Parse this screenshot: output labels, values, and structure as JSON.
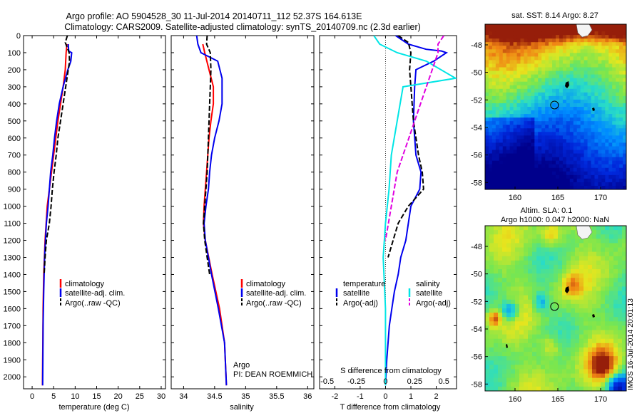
{
  "header": {
    "line1": "Argo profile: AO 5904528_30 11-Jul-2014 20140711_112 52.37S 164.613E",
    "line2": "Climatology: CARS2009. Satellite-adjusted climatology: synTS_20140709.nc (2.3d earlier)"
  },
  "colors": {
    "climatology": "#ff0000",
    "satellite": "#0000ee",
    "argo": "#000000",
    "sat_salinity": "#00e5e5",
    "argo_salinity": "#e000e0"
  },
  "depth_ticks": [
    "0",
    "100",
    "200",
    "300",
    "400",
    "500",
    "600",
    "700",
    "800",
    "900",
    "1000",
    "1100",
    "1200",
    "1300",
    "1400",
    "1500",
    "1600",
    "1700",
    "1800",
    "1900",
    "2000"
  ],
  "chart_data": [
    {
      "type": "line",
      "id": "temperature",
      "xlabel": "temperature (deg C)",
      "ylabel": "",
      "xlim": [
        -2,
        31
      ],
      "ylim": [
        2070,
        0
      ],
      "x_ticks": [
        "0",
        "5",
        "10",
        "15",
        "20",
        "25",
        "30"
      ],
      "x_tick_values": [
        0,
        5,
        10,
        15,
        20,
        25,
        30
      ],
      "legend": [
        "climatology",
        "satellite-adj. clim.",
        "Argo(..raw -QC)"
      ],
      "legend_position": "lower-center",
      "series": [
        {
          "name": "climatology",
          "color": "#ff0000",
          "x": [
            8.1,
            7.9,
            7.7,
            7.2,
            6.6,
            6.0,
            5.5,
            5.0,
            4.5,
            4.0,
            3.5,
            3.0,
            2.7,
            2.55,
            2.5,
            2.45,
            2.4
          ],
          "y": [
            50,
            100,
            200,
            300,
            400,
            500,
            600,
            700,
            800,
            900,
            1000,
            1200,
            1400,
            1600,
            1800,
            1900,
            2050
          ]
        },
        {
          "name": "satellite-adj. clim.",
          "color": "#0000ee",
          "x": [
            8.4,
            8.5,
            9.2,
            9.0,
            8.3,
            7.2,
            6.3,
            5.7,
            5.2,
            4.8,
            4.3,
            3.7,
            3.3,
            2.9,
            2.7,
            2.55,
            2.5,
            2.45
          ],
          "y": [
            50,
            90,
            100,
            150,
            200,
            300,
            400,
            500,
            600,
            700,
            800,
            1000,
            1100,
            1300,
            1500,
            1700,
            1900,
            2050
          ]
        },
        {
          "name": "Argo(..raw -QC)",
          "color": "#000000",
          "x": [
            8.2,
            7.7,
            8.6,
            8.7,
            8.4,
            7.8,
            7.2,
            6.6,
            6.0,
            5.6,
            5.1,
            4.7,
            4.4,
            4.0,
            3.3,
            3.0,
            2.8
          ],
          "y": [
            0,
            40,
            100,
            150,
            200,
            300,
            400,
            500,
            600,
            700,
            800,
            900,
            1000,
            1100,
            1200,
            1300,
            1400
          ]
        }
      ]
    },
    {
      "type": "line",
      "id": "salinity",
      "xlabel": "salinity",
      "ylabel": "",
      "xlim": [
        33.8,
        36.1
      ],
      "ylim": [
        2070,
        0
      ],
      "x_ticks": [
        "34",
        "34.5",
        "35",
        "35.5",
        "36"
      ],
      "x_tick_values": [
        34,
        34.5,
        35,
        35.5,
        36
      ],
      "legend": [
        "climatology",
        "satellite-adj. clim.",
        "Argo(..raw -QC)"
      ],
      "legend_position": "lower-center",
      "annotations": [
        "Argo",
        "PI: DEAN ROEMMICH"
      ],
      "series": [
        {
          "name": "climatology",
          "color": "#ff0000",
          "x": [
            34.31,
            34.34,
            34.41,
            34.48,
            34.48,
            34.44,
            34.41,
            34.39,
            34.37,
            34.35,
            34.33,
            34.32,
            34.35,
            34.46,
            34.58,
            34.66,
            34.69
          ],
          "y": [
            50,
            100,
            200,
            300,
            400,
            500,
            600,
            700,
            800,
            900,
            1000,
            1100,
            1200,
            1400,
            1600,
            1800,
            2050
          ]
        },
        {
          "name": "satellite-adj. clim.",
          "color": "#0000ee",
          "x": [
            34.21,
            34.23,
            34.28,
            34.55,
            34.62,
            34.62,
            34.57,
            34.5,
            34.45,
            34.42,
            34.4,
            34.36,
            34.33,
            34.35,
            34.45,
            34.56,
            34.66,
            34.69
          ],
          "y": [
            0,
            50,
            100,
            150,
            250,
            400,
            500,
            600,
            700,
            800,
            900,
            1000,
            1100,
            1200,
            1400,
            1600,
            1800,
            2050
          ]
        },
        {
          "name": "Argo(..raw -QC)",
          "color": "#000000",
          "x": [
            34.38,
            34.37,
            34.43,
            34.44,
            34.42,
            34.4,
            34.38,
            34.36,
            34.34,
            34.32,
            34.34,
            34.38,
            34.42
          ],
          "y": [
            0,
            50,
            100,
            200,
            400,
            600,
            800,
            900,
            1000,
            1100,
            1200,
            1300,
            1400
          ]
        }
      ]
    },
    {
      "type": "line",
      "id": "difference",
      "xlabel": "T difference from climatology",
      "xlabel_top": "S difference from climatology",
      "xlim": [
        -2.6,
        2.8
      ],
      "ylim": [
        2070,
        0
      ],
      "x_ticks": [
        "-2",
        "-1",
        "0",
        "1",
        "2"
      ],
      "x_tick_values": [
        -2,
        -1,
        0,
        1,
        2
      ],
      "s_ticks": [
        "-0.5",
        "-0.25",
        "0",
        "0.25",
        "0.5"
      ],
      "s_tick_values": [
        -0.5,
        -0.25,
        0,
        0.25,
        0.5
      ],
      "legend_headers": [
        "temperature",
        "salinity"
      ],
      "legend": [
        "satellite",
        "Argo(-adj)",
        "satellite",
        "Argo(-adj)"
      ],
      "legend_position": "lower-center",
      "series": [
        {
          "name": "satellite",
          "quantity": "temperature",
          "color": "#0000ee",
          "x": [
            0.4,
            0.9,
            1.6,
            2.2,
            2.4,
            1.9,
            1.2,
            1.15,
            1.1,
            1.2,
            1.4,
            1.35,
            1.0,
            0.8,
            0.6,
            0.5,
            0.35,
            0.25,
            0.15,
            0.05,
            0.0
          ],
          "y": [
            0,
            50,
            80,
            90,
            100,
            150,
            200,
            300,
            500,
            700,
            800,
            900,
            1000,
            1200,
            1300,
            1400,
            1500,
            1600,
            1700,
            1900,
            2050
          ]
        },
        {
          "name": "Argo(-adj)",
          "quantity": "temperature",
          "color": "#000000",
          "x": [
            0.5,
            0.9,
            1.0,
            0.95,
            1.0,
            1.1,
            1.3,
            1.45,
            1.5,
            0.9,
            0.5,
            0.3,
            0.1
          ],
          "y": [
            0,
            40,
            100,
            200,
            300,
            500,
            700,
            800,
            900,
            1000,
            1100,
            1200,
            1300
          ]
        },
        {
          "name": "satellite",
          "quantity": "salinity",
          "color": "#00e5e5",
          "x": [
            -0.1,
            -0.05,
            0.1,
            0.35,
            0.6,
            0.15,
            0.1,
            0.05,
            0.03,
            0.0,
            -0.02,
            0.0,
            0.0
          ],
          "y": [
            0,
            50,
            100,
            150,
            250,
            300,
            500,
            700,
            900,
            1100,
            1300,
            1600,
            2050
          ]
        },
        {
          "name": "Argo(-adj)",
          "quantity": "salinity",
          "color": "#e000e0",
          "x": [
            0.5,
            0.45,
            0.45,
            0.4,
            0.3,
            0.2,
            0.1,
            0.05,
            0.0
          ],
          "y": [
            0,
            50,
            100,
            200,
            400,
            600,
            800,
            1000,
            1200
          ]
        }
      ]
    },
    {
      "type": "heatmap",
      "id": "sst-map",
      "title": "sat. SST: 8.14 Argo: 8.27",
      "x_ticks": [
        "160",
        "165",
        "170"
      ],
      "x_tick_values": [
        160,
        165,
        170
      ],
      "y_ticks": [
        "-48",
        "-50",
        "-52",
        "-54",
        "-56",
        "-58"
      ],
      "y_tick_values": [
        -48,
        -50,
        -52,
        -54,
        -56,
        -58
      ],
      "xlim": [
        156.5,
        173
      ],
      "ylim": [
        -58.5,
        -46.5
      ],
      "profile_location": [
        164.613,
        -52.37
      ]
    },
    {
      "type": "heatmap",
      "id": "sla-map",
      "title_line1": "Altim. SLA: 0.1",
      "title_line2": "Argo h1000: 0.047 h2000: NaN",
      "x_ticks": [
        "160",
        "165",
        "170"
      ],
      "x_tick_values": [
        160,
        165,
        170
      ],
      "y_ticks": [
        "-48",
        "-50",
        "-52",
        "-54",
        "-56",
        "-58"
      ],
      "y_tick_values": [
        -48,
        -50,
        -52,
        -54,
        -56,
        -58
      ],
      "xlim": [
        156.5,
        173
      ],
      "ylim": [
        -58.5,
        -46.5
      ],
      "profile_location": [
        164.613,
        -52.37
      ]
    }
  ],
  "watermark": "IMOS 16-Jul-2014 20:01:13"
}
